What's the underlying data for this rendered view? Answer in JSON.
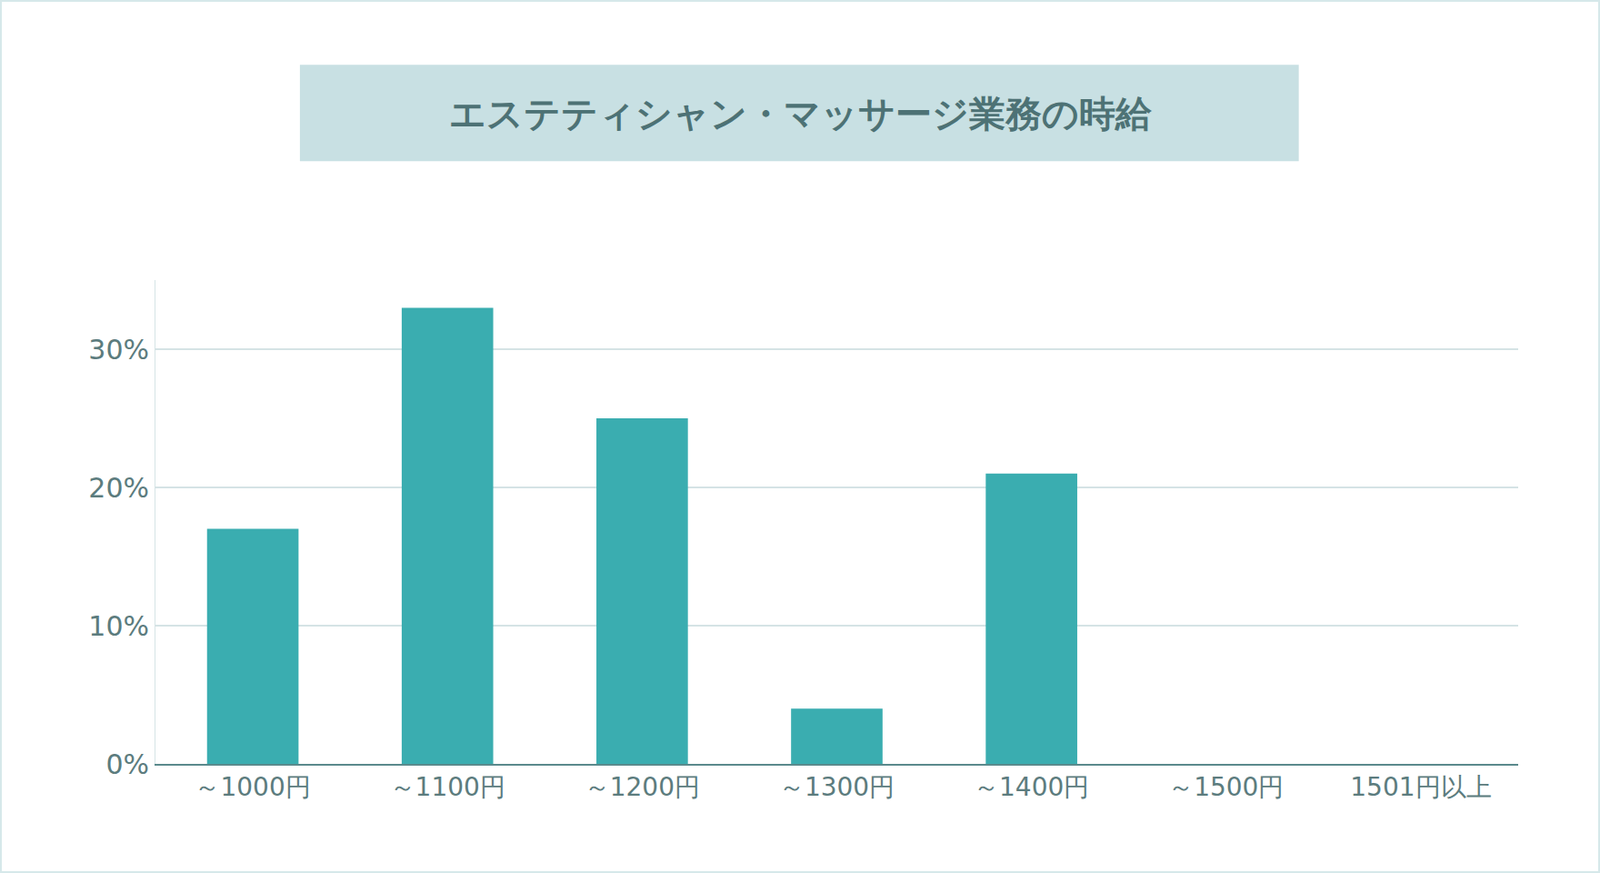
{
  "chart_data": {
    "type": "bar",
    "title": "エステティシャン・マッサージ業務の時給",
    "categories": [
      "～1000円",
      "～1100円",
      "～1200円",
      "～1300円",
      "～1400円",
      "～1500円",
      "1501円以上"
    ],
    "values": [
      17,
      33,
      25,
      4,
      21,
      0,
      0
    ],
    "color": "#3aadb0",
    "ylim": [
      0,
      35
    ],
    "yticks": [
      {
        "value": 0,
        "label": "0%"
      },
      {
        "value": 10,
        "label": "10%"
      },
      {
        "value": 20,
        "label": "20%"
      },
      {
        "value": 30,
        "label": "30%"
      }
    ],
    "grid": true
  }
}
